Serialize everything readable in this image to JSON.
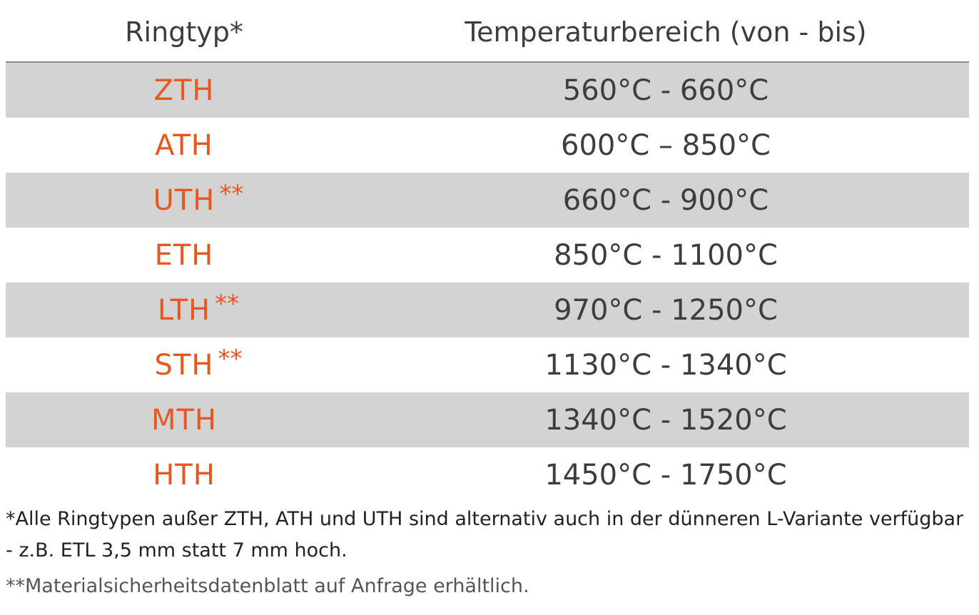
{
  "table": {
    "headers": {
      "type": "Ringtyp*",
      "temperature": "Temperaturbereich (von - bis)"
    },
    "rows": [
      {
        "type": "ZTH",
        "marker": "",
        "range": "560°C - 660°C"
      },
      {
        "type": "ATH",
        "marker": "",
        "range": "600°C – 850°C"
      },
      {
        "type": "UTH",
        "marker": "**",
        "range": "660°C - 900°C"
      },
      {
        "type": "ETH",
        "marker": "",
        "range": "850°C - 1100°C"
      },
      {
        "type": "LTH",
        "marker": "**",
        "range": "970°C - 1250°C"
      },
      {
        "type": "STH",
        "marker": "**",
        "range": "1130°C - 1340°C"
      },
      {
        "type": "MTH",
        "marker": "",
        "range": "1340°C - 1520°C"
      },
      {
        "type": "HTH",
        "marker": "",
        "range": "1450°C - 1750°C"
      }
    ]
  },
  "footnotes": {
    "note1": "*Alle Ringtypen außer ZTH, ATH und UTH sind alternativ auch in der dünneren L-Variante verfügbar - z.B. ETL 3,5 mm statt 7 mm hoch.",
    "note2": "**Materialsicherheitsdatenblatt auf Anfrage erhältlich."
  },
  "colors": {
    "accent": "#e8571f",
    "row_shade": "#d3d3d3",
    "text": "#3d3d3d"
  }
}
